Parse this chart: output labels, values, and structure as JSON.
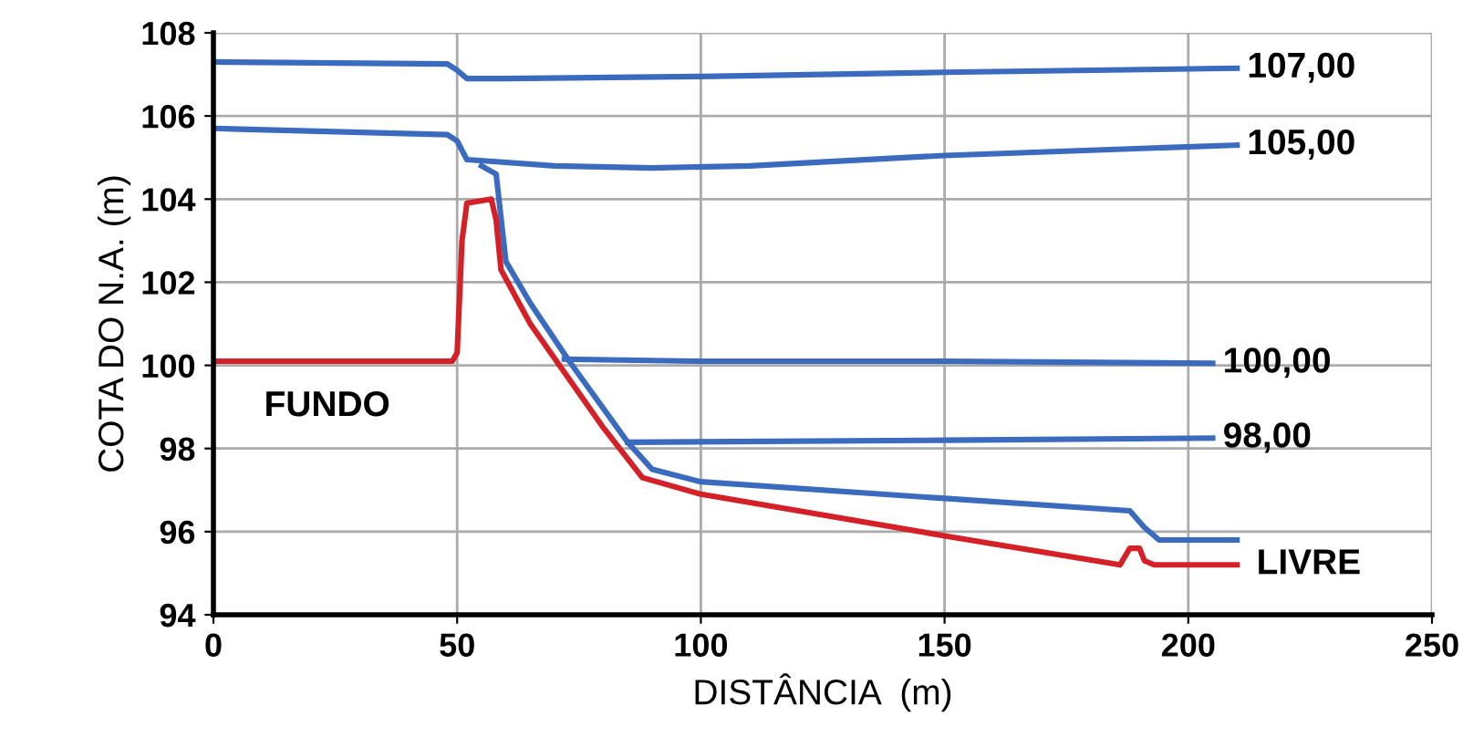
{
  "chart_data": {
    "type": "line",
    "xlabel": "DISTÂNCIA  (m)",
    "ylabel": "COTA DO N.A. (m)",
    "xlim": [
      0,
      250
    ],
    "ylim": [
      94,
      108
    ],
    "xticks": [
      0,
      50,
      100,
      150,
      200,
      250
    ],
    "yticks": [
      94,
      96,
      98,
      100,
      102,
      104,
      106,
      108
    ],
    "grid": true,
    "marker": "none",
    "line_style": "solid",
    "series": [
      {
        "name": "107,00",
        "color": "#3a6bbf",
        "x": [
          0,
          48,
          50,
          52,
          60,
          100,
          150,
          210
        ],
        "values": [
          107.3,
          107.25,
          107.1,
          106.9,
          106.9,
          106.95,
          107.05,
          107.15
        ]
      },
      {
        "name": "105,00",
        "color": "#3a6bbf",
        "x": [
          0,
          48,
          50,
          52,
          58,
          70,
          90,
          110,
          150,
          210
        ],
        "values": [
          105.7,
          105.55,
          105.4,
          104.95,
          104.9,
          104.8,
          104.75,
          104.8,
          105.05,
          105.3
        ]
      },
      {
        "name": "100,00",
        "color": "#3a6bbf",
        "x": [
          72,
          100,
          150,
          205
        ],
        "values": [
          100.15,
          100.1,
          100.1,
          100.05
        ]
      },
      {
        "name": "98,00",
        "color": "#3a6bbf",
        "x": [
          85,
          150,
          205
        ],
        "values": [
          98.15,
          98.2,
          98.25
        ]
      },
      {
        "color": "#3a6bbf",
        "x": [
          55,
          58,
          60,
          65,
          73,
          85,
          90,
          100,
          150,
          188,
          191,
          194,
          210
        ],
        "values": [
          104.8,
          104.6,
          102.5,
          101.5,
          100.1,
          98.15,
          97.5,
          97.2,
          96.8,
          96.5,
          96.1,
          95.8,
          95.8
        ]
      },
      {
        "name": "FUNDO",
        "color": "#d42027",
        "x": [
          0,
          49,
          50,
          51,
          52,
          57,
          58,
          59,
          65,
          80,
          88,
          100,
          150,
          186,
          188,
          190,
          191,
          193,
          210
        ],
        "values": [
          100.1,
          100.1,
          100.3,
          103,
          103.9,
          104,
          103.5,
          102.3,
          101,
          98.5,
          97.3,
          96.9,
          95.9,
          95.2,
          95.6,
          95.6,
          95.3,
          95.2,
          95.2
        ]
      }
    ],
    "annotations": [
      "LIVRE"
    ]
  }
}
